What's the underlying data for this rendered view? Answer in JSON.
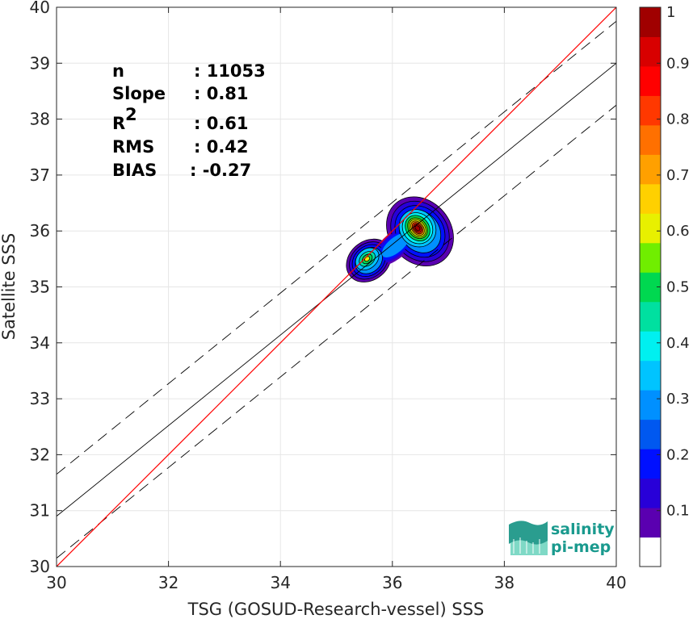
{
  "chart_data": {
    "type": "scatter",
    "subtype": "density-contour",
    "xlabel": "TSG (GOSUD-Research-vessel) SSS",
    "ylabel": "Satellite SSS",
    "xlim": [
      30,
      40
    ],
    "ylim": [
      30,
      40
    ],
    "xticks": [
      "30",
      "32",
      "34",
      "36",
      "38",
      "40"
    ],
    "yticks": [
      "30",
      "31",
      "32",
      "33",
      "34",
      "35",
      "36",
      "37",
      "38",
      "39",
      "40"
    ],
    "grid": true,
    "stats": [
      {
        "key": "n",
        "sup": "",
        "value": ": 11053"
      },
      {
        "key": "Slope",
        "sup": "",
        "value": ": 0.81"
      },
      {
        "key": "R",
        "sup": "2",
        "value": ": 0.61"
      },
      {
        "key": "RMS",
        "sup": "",
        "value": ": 0.42"
      },
      {
        "key": "BIAS",
        "sup": "",
        "value": ": -0.27"
      }
    ],
    "lines": {
      "identity": {
        "x": [
          30,
          40
        ],
        "y": [
          30,
          40
        ],
        "color": "#ff0000"
      },
      "regression": {
        "x": [
          30,
          40
        ],
        "y": [
          30.9,
          39.0
        ],
        "color": "#000000"
      },
      "upper_dashed": {
        "x": [
          30,
          40
        ],
        "y": [
          31.65,
          39.75
        ],
        "color": "#000000"
      },
      "lower_dashed": {
        "x": [
          30,
          40
        ],
        "y": [
          30.15,
          38.25
        ],
        "color": "#000000"
      }
    },
    "density_peaks": [
      {
        "x": 36.45,
        "y": 36.05,
        "level": 1.0
      },
      {
        "x": 35.55,
        "y": 35.5,
        "level": 0.5
      }
    ],
    "colorbar": {
      "min": 0,
      "max": 1,
      "ticks": [
        "0.1",
        "0.2",
        "0.3",
        "0.4",
        "0.5",
        "0.6",
        "0.7",
        "0.8",
        "0.9",
        "1"
      ],
      "colors": [
        "#ffffff",
        "#5a00b0",
        "#2800d8",
        "#0010ff",
        "#0058f0",
        "#0090ff",
        "#00c4ff",
        "#00f0f0",
        "#00e0a0",
        "#00d850",
        "#70ee00",
        "#e8f000",
        "#ffd000",
        "#ffa000",
        "#ff7000",
        "#ff3800",
        "#ff0000",
        "#d80000",
        "#a00000"
      ]
    }
  },
  "logo": {
    "line1": "salinity",
    "line2": "pi-mep"
  }
}
